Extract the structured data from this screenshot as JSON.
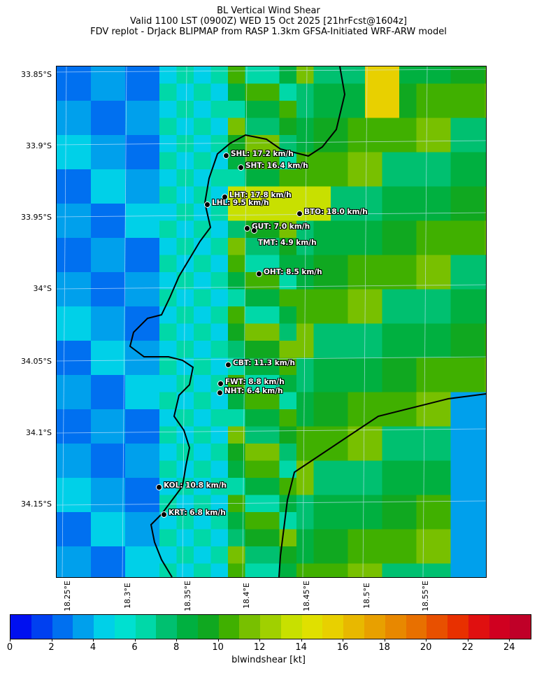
{
  "title": {
    "line1": "BL Vertical Wind Shear",
    "line2": "Valid 1100 LST (0900Z) WED 15 Oct 2025 [21hrFcst@1604z]",
    "line3": "FDV replot - DrJack BLIPMAP from RASP 1.3km GFSA-Initiated WRF-ARW model"
  },
  "lat_labels": [
    "33.85°S",
    "33.9°S",
    "33.95°S",
    "34°S",
    "34.05°S",
    "34.1°S",
    "34.15°S"
  ],
  "lon_labels": [
    "18.25°E",
    "18.3°E",
    "18.35°E",
    "18.4°E",
    "18.45°E",
    "18.5°E",
    "18.55°E"
  ],
  "stations": [
    {
      "code": "SHL",
      "text": "SHL: 17.2 km/h"
    },
    {
      "code": "SHT",
      "text": "SHT: 16.4 km/h"
    },
    {
      "code": "LHT",
      "text": "LHT: 17.8 km/h"
    },
    {
      "code": "LHL",
      "text": "LHL: 9.5 km/h"
    },
    {
      "code": "BTO",
      "text": "BTO: 18.0 km/h"
    },
    {
      "code": "GUT",
      "text": "GUT: 7.0 km/h"
    },
    {
      "code": "TMT",
      "text": "TMT: 4.9 km/h"
    },
    {
      "code": "OHT",
      "text": "OHT: 8.5 km/h"
    },
    {
      "code": "CBT",
      "text": "CBT: 11.3 km/h"
    },
    {
      "code": "FWT",
      "text": "FWT: 8.8 km/h"
    },
    {
      "code": "NHT",
      "text": "NHT: 6.4 km/h"
    },
    {
      "code": "KOL",
      "text": "KOL: 10.8 km/h"
    },
    {
      "code": "KRT",
      "text": "KRT: 6.8 km/h"
    }
  ],
  "colorbar": {
    "label": "blwindshear [kt]",
    "ticks": [
      "0",
      "2",
      "4",
      "6",
      "8",
      "10",
      "12",
      "14",
      "16",
      "18",
      "20",
      "22",
      "24"
    ],
    "colors": [
      "#0010f0",
      "#0040f0",
      "#0070f0",
      "#00a0ec",
      "#00d0e8",
      "#00e0d0",
      "#00d8a8",
      "#00c070",
      "#00b040",
      "#10a820",
      "#40b000",
      "#78c000",
      "#a0d000",
      "#c8e000",
      "#e0e000",
      "#e8d000",
      "#e8b800",
      "#e8a000",
      "#e88800",
      "#e87000",
      "#e85000",
      "#e83000",
      "#e01010",
      "#d00020",
      "#c00028"
    ]
  }
}
